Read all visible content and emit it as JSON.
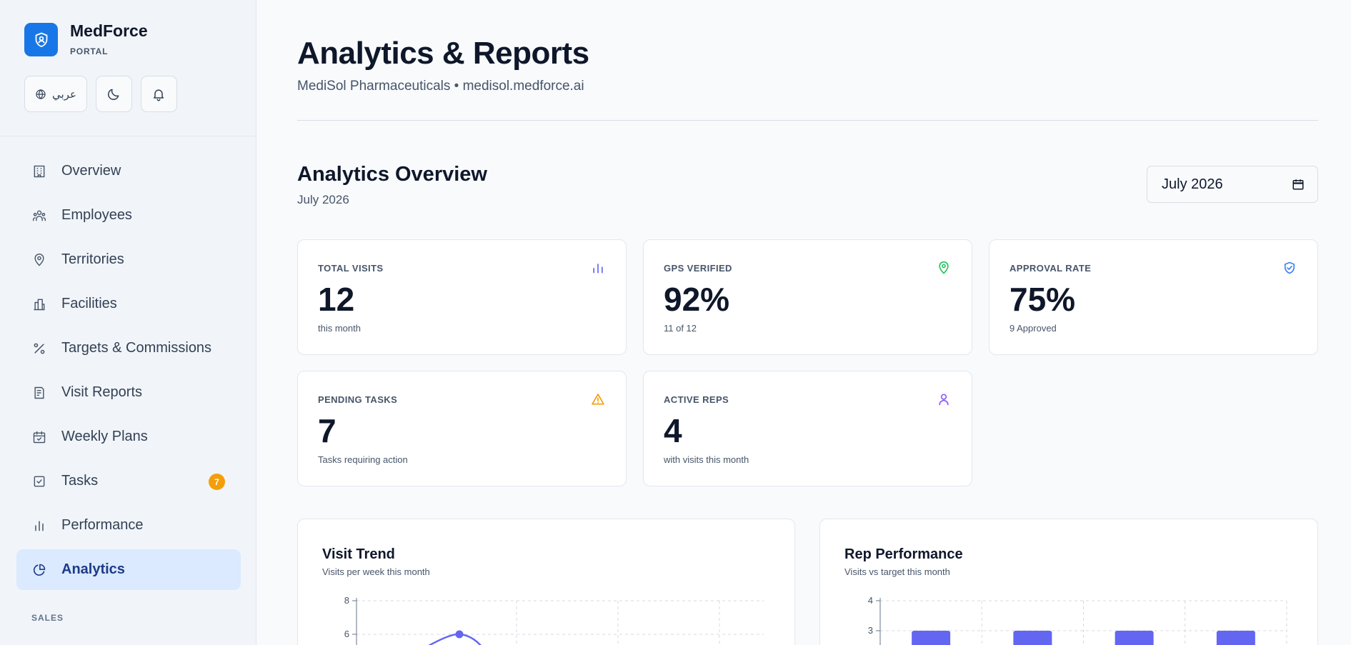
{
  "brand": {
    "name": "MedForce",
    "sub": "PORTAL"
  },
  "toolbar": {
    "language_label": "عربي"
  },
  "sidebar": {
    "items": [
      {
        "label": "Overview",
        "icon": "building-icon"
      },
      {
        "label": "Employees",
        "icon": "users-icon"
      },
      {
        "label": "Territories",
        "icon": "map-pin-icon"
      },
      {
        "label": "Facilities",
        "icon": "facility-icon"
      },
      {
        "label": "Targets & Commissions",
        "icon": "percent-icon"
      },
      {
        "label": "Visit Reports",
        "icon": "report-icon"
      },
      {
        "label": "Weekly Plans",
        "icon": "calendar-check-icon"
      },
      {
        "label": "Tasks",
        "icon": "checkbox-icon",
        "badge": "7"
      },
      {
        "label": "Performance",
        "icon": "bar-chart-icon"
      },
      {
        "label": "Analytics",
        "icon": "pie-chart-icon",
        "active": true
      }
    ],
    "section_label": "SALES"
  },
  "header": {
    "title": "Analytics & Reports",
    "subtitle": "MediSol Pharmaceuticals • medisol.medforce.ai"
  },
  "overview": {
    "title": "Analytics Overview",
    "subtitle": "July 2026",
    "month_value": "July 2026"
  },
  "stats": [
    {
      "label": "TOTAL VISITS",
      "value": "12",
      "caption": "this month",
      "icon": "bar-chart-icon",
      "color": "#6366f1"
    },
    {
      "label": "GPS VERIFIED",
      "value": "92%",
      "caption": "11 of 12",
      "icon": "map-pin-icon",
      "color": "#22c55e"
    },
    {
      "label": "APPROVAL RATE",
      "value": "75%",
      "caption": "9 Approved",
      "icon": "shield-check-icon",
      "color": "#3b82f6"
    },
    {
      "label": "PENDING TASKS",
      "value": "7",
      "caption": "Tasks requiring action",
      "icon": "warning-icon",
      "color": "#f59e0b"
    },
    {
      "label": "ACTIVE REPS",
      "value": "4",
      "caption": "with visits this month",
      "icon": "user-icon",
      "color": "#8b5cf6"
    }
  ],
  "charts": {
    "visit_trend": {
      "title": "Visit Trend",
      "subtitle": "Visits per week this month"
    },
    "rep_performance": {
      "title": "Rep Performance",
      "subtitle": "Visits vs target this month"
    }
  },
  "chart_data": [
    {
      "type": "line",
      "title": "Visit Trend",
      "subtitle": "Visits per week this month",
      "ylim": [
        0,
        8
      ],
      "yticks": [
        6,
        8
      ],
      "x_count": 5,
      "series": [
        {
          "values": [
            null,
            6,
            null,
            null,
            null
          ]
        }
      ],
      "grid": true,
      "color": "#6366f1"
    },
    {
      "type": "bar",
      "title": "Rep Performance",
      "subtitle": "Visits vs target this month",
      "ylim": [
        0,
        4
      ],
      "yticks": [
        3,
        4
      ],
      "series": [
        {
          "values": [
            3,
            3,
            3,
            3
          ]
        }
      ],
      "grid": true,
      "color": "#6366f1"
    }
  ]
}
